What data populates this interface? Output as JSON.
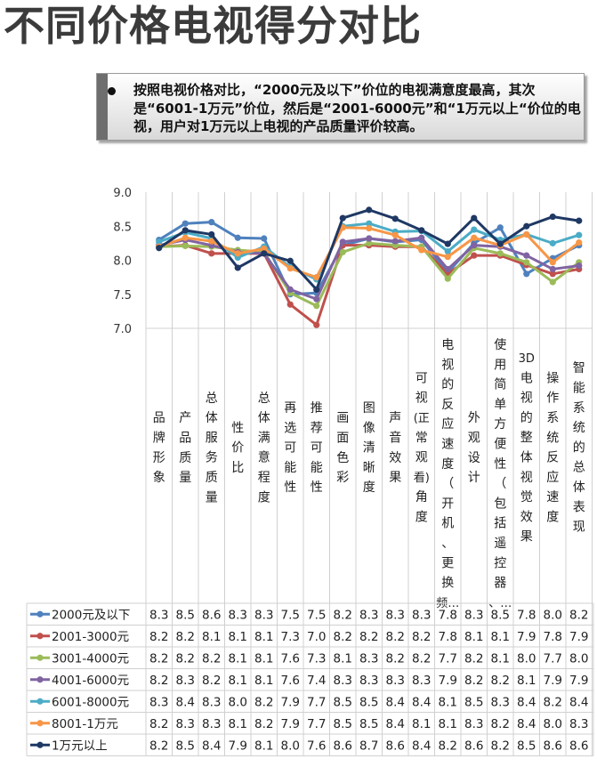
{
  "page": {
    "title": "不同价格电视得分对比",
    "callout_text": "按照电视价格对比，“2000元及以下”价位的电视满意度最高，其次是“6001-1万元”价位，然后是“2001-6000元”和“1万元以上“价位的电视，用户对1万元以上电视的产品质量评价较高。"
  },
  "chart_data": {
    "type": "line",
    "title": "",
    "xlabel": "",
    "ylabel": "",
    "ylim": [
      7.0,
      9.0
    ],
    "yticks": [
      "7.0",
      "7.5",
      "8.0",
      "8.5",
      "9.0"
    ],
    "grid": "vertical category lines",
    "legend": "left of data table",
    "categories": [
      "品牌形象",
      "产品质量",
      "总体服务质量",
      "性价比",
      "总体满意程度",
      "再选可能性",
      "推荐可能性",
      "画面色彩",
      "图像清晰度",
      "声音效果",
      "可视(正常观看)角度",
      "电视的反应速度（开机、更换频…",
      "外观设计",
      "使用简单方便性（包括遥控器、…",
      "3D电视的整体视觉效果",
      "操作系统反应速度",
      "智能系统的总体表现"
    ],
    "category_lines": [
      [
        "品",
        "牌",
        "形",
        "象"
      ],
      [
        "产",
        "品",
        "质",
        "量"
      ],
      [
        "总",
        "体",
        "服",
        "务",
        "质",
        "量"
      ],
      [
        "性",
        "价",
        "比"
      ],
      [
        "总",
        "体",
        "满",
        "意",
        "程",
        "度"
      ],
      [
        "再",
        "选",
        "可",
        "能",
        "性"
      ],
      [
        "推",
        "荐",
        "可",
        "能",
        "性"
      ],
      [
        "画",
        "面",
        "色",
        "彩"
      ],
      [
        "图",
        "像",
        "清",
        "晰",
        "度"
      ],
      [
        "声",
        "音",
        "效",
        "果"
      ],
      [
        "可",
        "视",
        "(正",
        "常",
        "观",
        "看)",
        "角",
        "度"
      ],
      [
        "电",
        "视",
        "的",
        "反",
        "应",
        "速",
        "度",
        "（",
        "开",
        "机",
        "、",
        "更",
        "换",
        "频…"
      ],
      [
        "外",
        "观",
        "设",
        "计"
      ],
      [
        "使",
        "用",
        "简",
        "单",
        "方",
        "便",
        "性",
        "（",
        "包",
        "括",
        "遥",
        "控",
        "器",
        "、…"
      ],
      [
        "3D",
        "电",
        "视",
        "的",
        "整",
        "体",
        "视",
        "觉",
        "效",
        "果"
      ],
      [
        "操",
        "作",
        "系",
        "统",
        "反",
        "应",
        "速",
        "度"
      ],
      [
        "智",
        "能",
        "系",
        "统",
        "的",
        "总",
        "体",
        "表",
        "现"
      ]
    ],
    "series": [
      {
        "name": "2000元及以下",
        "color": "#4f81bd",
        "values": [
          8.3,
          8.5,
          8.6,
          8.3,
          8.3,
          7.5,
          7.5,
          8.2,
          8.3,
          8.3,
          8.3,
          7.8,
          8.3,
          8.5,
          7.8,
          8.0,
          8.2
        ],
        "plot": [
          8.3,
          8.54,
          8.56,
          8.33,
          8.32,
          7.5,
          7.52,
          8.22,
          8.32,
          8.27,
          8.3,
          7.82,
          8.25,
          8.48,
          7.8,
          8.03,
          8.22
        ]
      },
      {
        "name": "2001-3000元",
        "color": "#c0504d",
        "values": [
          8.2,
          8.2,
          8.1,
          8.1,
          8.1,
          7.3,
          7.0,
          8.2,
          8.2,
          8.2,
          8.2,
          7.8,
          8.1,
          8.1,
          7.9,
          7.8,
          7.9
        ],
        "plot": [
          8.2,
          8.22,
          8.1,
          8.1,
          8.1,
          7.35,
          7.05,
          8.22,
          8.22,
          8.2,
          8.2,
          7.8,
          8.07,
          8.07,
          7.93,
          7.8,
          7.87
        ]
      },
      {
        "name": "3001-4000元",
        "color": "#9bbb59",
        "values": [
          8.2,
          8.2,
          8.2,
          8.1,
          8.1,
          7.6,
          7.3,
          8.1,
          8.3,
          8.2,
          8.2,
          7.7,
          8.2,
          8.1,
          8.0,
          7.7,
          8.0
        ],
        "plot": [
          8.2,
          8.21,
          8.2,
          8.15,
          8.12,
          7.52,
          7.33,
          8.12,
          8.25,
          8.22,
          8.2,
          7.73,
          8.18,
          8.1,
          7.97,
          7.68,
          7.97
        ]
      },
      {
        "name": "4001-6000元",
        "color": "#8064a2",
        "values": [
          8.2,
          8.3,
          8.2,
          8.1,
          8.1,
          7.6,
          7.4,
          8.3,
          8.3,
          8.3,
          8.3,
          7.9,
          8.2,
          8.2,
          8.1,
          7.9,
          7.9
        ],
        "plot": [
          8.22,
          8.3,
          8.22,
          8.12,
          8.1,
          7.57,
          7.43,
          8.27,
          8.32,
          8.28,
          8.33,
          7.87,
          8.22,
          8.2,
          8.07,
          7.87,
          7.92
        ]
      },
      {
        "name": "6001-8000元",
        "color": "#4bacc6",
        "values": [
          8.3,
          8.4,
          8.3,
          8.0,
          8.2,
          7.9,
          7.7,
          8.5,
          8.5,
          8.4,
          8.4,
          8.1,
          8.5,
          8.3,
          8.4,
          8.2,
          8.4
        ],
        "plot": [
          8.27,
          8.41,
          8.32,
          8.04,
          8.2,
          7.9,
          7.72,
          8.5,
          8.54,
          8.42,
          8.43,
          8.13,
          8.45,
          8.3,
          8.38,
          8.25,
          8.37
        ]
      },
      {
        "name": "8001-1万元",
        "color": "#f79646",
        "values": [
          8.2,
          8.3,
          8.3,
          8.1,
          8.2,
          7.9,
          7.7,
          8.5,
          8.5,
          8.4,
          8.1,
          8.1,
          8.3,
          8.2,
          8.4,
          8.0,
          8.3
        ],
        "plot": [
          8.2,
          8.33,
          8.28,
          8.1,
          8.17,
          7.88,
          7.75,
          8.48,
          8.47,
          8.37,
          8.15,
          8.05,
          8.33,
          8.22,
          8.38,
          7.97,
          8.26
        ]
      },
      {
        "name": "1万元以上",
        "color": "#1f3864",
        "values": [
          8.2,
          8.5,
          8.4,
          7.9,
          8.1,
          8.0,
          7.6,
          8.6,
          8.7,
          8.6,
          8.4,
          8.2,
          8.6,
          8.2,
          8.5,
          8.6,
          8.6
        ],
        "plot": [
          8.18,
          8.44,
          8.38,
          7.89,
          8.1,
          7.99,
          7.57,
          8.62,
          8.74,
          8.61,
          8.44,
          8.24,
          8.62,
          8.24,
          8.5,
          8.64,
          8.58
        ]
      }
    ]
  }
}
